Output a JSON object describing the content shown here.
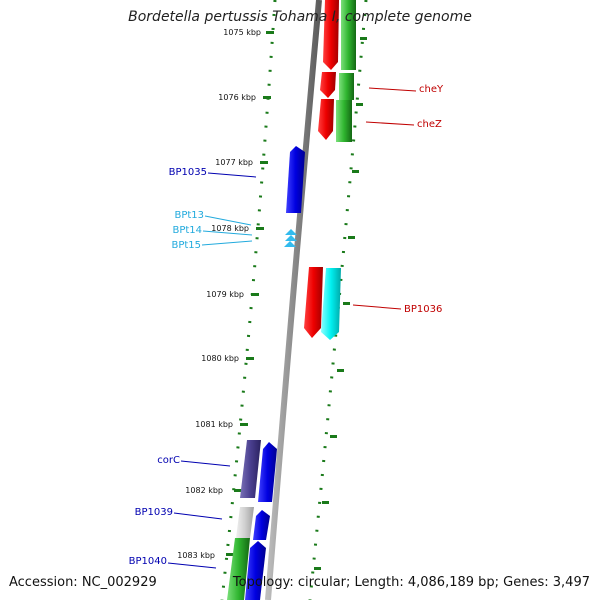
{
  "title": "Bordetella pertussis Tohama I, complete genome",
  "footer": {
    "accession": "Accession: NC_002929",
    "summary": "Topology: circular; Length: 4,086,189 bp; Genes: 3,497"
  },
  "colors": {
    "backbone": "#8c8c8c",
    "tick": "#1a7a1a",
    "label_red": "#c00000",
    "label_blue": "#0000b0",
    "label_cyan": "#22aadd"
  },
  "kbp_ticks": [
    {
      "label": "1075 kbp"
    },
    {
      "label": "1076 kbp"
    },
    {
      "label": "1077 kbp"
    },
    {
      "label": "1078 kbp"
    },
    {
      "label": "1079 kbp"
    },
    {
      "label": "1080 kbp"
    },
    {
      "label": "1081 kbp"
    },
    {
      "label": "1082 kbp"
    },
    {
      "label": "1083 kbp"
    }
  ],
  "gene_labels": [
    {
      "text": "cheY",
      "color": "#c00000"
    },
    {
      "text": "cheZ",
      "color": "#c00000"
    },
    {
      "text": "BP1035",
      "color": "#0000b0"
    },
    {
      "text": "BPt13",
      "color": "#22aadd"
    },
    {
      "text": "BPt14",
      "color": "#22aadd"
    },
    {
      "text": "BPt15",
      "color": "#22aadd"
    },
    {
      "text": "BP1036",
      "color": "#c00000"
    },
    {
      "text": "corC",
      "color": "#0000b0"
    },
    {
      "text": "BP1039",
      "color": "#0000b0"
    },
    {
      "text": "BP1040",
      "color": "#0000b0"
    }
  ]
}
